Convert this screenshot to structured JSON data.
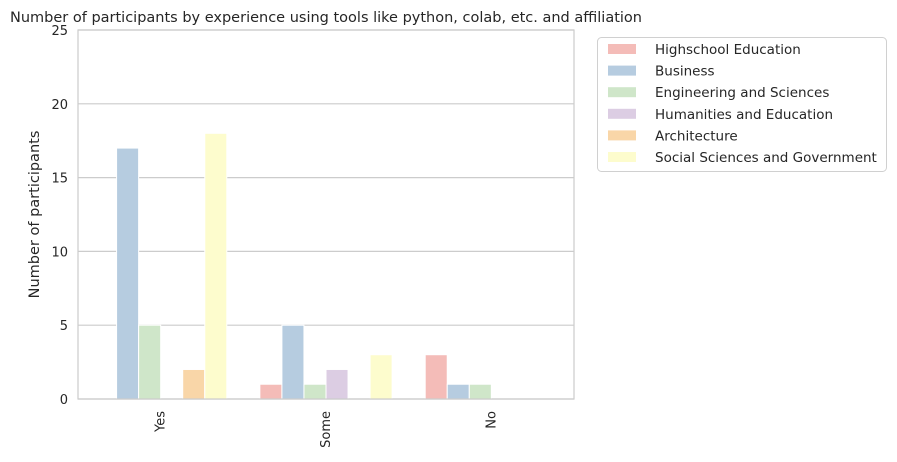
{
  "chart_data": {
    "type": "bar",
    "title": "Number of participants by experience using tools like python, colab, etc. and affiliation",
    "xlabel": "",
    "ylabel": "Number of participants",
    "categories": [
      "Yes",
      "Some",
      "No"
    ],
    "ylim": [
      0,
      25
    ],
    "yticks": [
      0,
      5,
      10,
      15,
      20,
      25
    ],
    "grid": "horizontal",
    "legend_position": "outside-top-right",
    "series": [
      {
        "name": "Highschool Education",
        "color": "#f4bcb8",
        "values": [
          0,
          1,
          3
        ]
      },
      {
        "name": "Business",
        "color": "#b6cce0",
        "values": [
          17,
          5,
          1
        ]
      },
      {
        "name": "Engineering and Sciences",
        "color": "#cfe6c9",
        "values": [
          5,
          1,
          1
        ]
      },
      {
        "name": "Humanities and Education",
        "color": "#dccde3",
        "values": [
          0,
          2,
          0
        ]
      },
      {
        "name": "Architecture",
        "color": "#f9d6a8",
        "values": [
          2,
          0,
          0
        ]
      },
      {
        "name": "Social Sciences and Government",
        "color": "#fdfccd",
        "values": [
          18,
          3,
          0
        ]
      }
    ]
  }
}
